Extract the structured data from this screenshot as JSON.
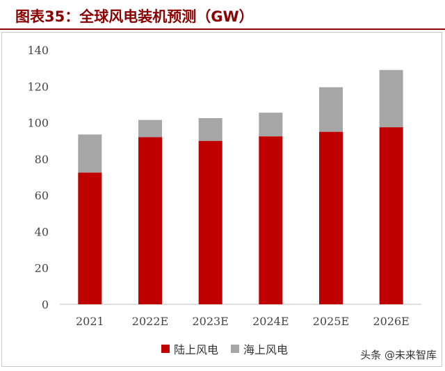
{
  "header": {
    "title": "图表35：全球风电装机预测（GW）"
  },
  "chart_data": {
    "type": "bar",
    "stacked": true,
    "categories": [
      "2021",
      "2022E",
      "2023E",
      "2024E",
      "2025E",
      "2026E"
    ],
    "series": [
      {
        "name": "陆上风电",
        "color": "#c00000",
        "values": [
          72.5,
          92.0,
          90.0,
          92.5,
          95.0,
          97.5
        ]
      },
      {
        "name": "海上风电",
        "color": "#a6a6a6",
        "values": [
          21.0,
          9.5,
          12.5,
          13.0,
          24.5,
          31.5
        ]
      }
    ],
    "yticks": [
      0,
      20,
      40,
      60,
      80,
      100,
      120,
      140
    ],
    "ylim": [
      0,
      140
    ],
    "grid": false,
    "legend_position": "bottom"
  },
  "watermark": {
    "text": "头条 @未来智库"
  }
}
